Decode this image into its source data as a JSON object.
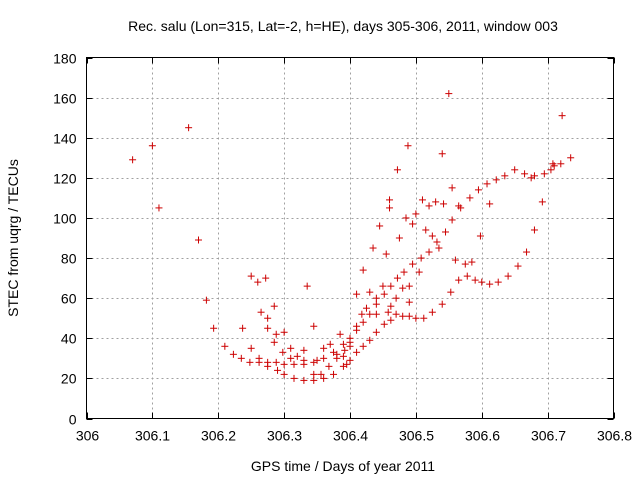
{
  "chart_data": {
    "type": "scatter",
    "title": "Rec. salu (Lon=315, Lat=-2, h=HE), days 305-306, 2011, window 003",
    "xlabel": "GPS time / Days of year 2011",
    "ylabel": "STEC from uqrg / TECUs",
    "xlim": [
      306,
      306.8
    ],
    "ylim": [
      0,
      180
    ],
    "x_ticks": [
      "306",
      "306.1",
      "306.2",
      "306.3",
      "306.4",
      "306.5",
      "306.6",
      "306.7",
      "306.8"
    ],
    "y_ticks": [
      "0",
      "20",
      "40",
      "60",
      "80",
      "100",
      "120",
      "140",
      "160",
      "180"
    ],
    "x_tick_values": [
      306,
      306.1,
      306.2,
      306.3,
      306.4,
      306.5,
      306.6,
      306.7,
      306.8
    ],
    "y_tick_values": [
      0,
      20,
      40,
      60,
      80,
      100,
      120,
      140,
      160,
      180
    ],
    "grid": true,
    "marker": "plus",
    "color": "#cc0000",
    "points": [
      [
        306.07,
        129
      ],
      [
        306.1,
        136
      ],
      [
        306.11,
        105
      ],
      [
        306.155,
        145
      ],
      [
        306.17,
        89
      ],
      [
        306.182,
        59
      ],
      [
        306.193,
        45
      ],
      [
        306.21,
        36
      ],
      [
        306.223,
        32
      ],
      [
        306.235,
        30
      ],
      [
        306.248,
        28
      ],
      [
        306.262,
        28
      ],
      [
        306.275,
        26
      ],
      [
        306.29,
        24
      ],
      [
        306.3,
        22
      ],
      [
        306.315,
        20
      ],
      [
        306.33,
        19
      ],
      [
        306.345,
        19
      ],
      [
        306.36,
        20
      ],
      [
        306.375,
        22
      ],
      [
        306.39,
        26
      ],
      [
        306.4,
        29
      ],
      [
        306.41,
        33
      ],
      [
        306.42,
        36
      ],
      [
        306.43,
        39
      ],
      [
        306.44,
        43
      ],
      [
        306.452,
        47
      ],
      [
        306.462,
        49
      ],
      [
        306.47,
        52
      ],
      [
        306.48,
        51
      ],
      [
        306.49,
        51
      ],
      [
        306.5,
        50
      ],
      [
        306.512,
        50
      ],
      [
        306.525,
        53
      ],
      [
        306.54,
        57
      ],
      [
        306.553,
        63
      ],
      [
        306.565,
        69
      ],
      [
        306.578,
        71
      ],
      [
        306.59,
        69
      ],
      [
        306.6,
        68
      ],
      [
        306.612,
        67
      ],
      [
        306.625,
        68
      ],
      [
        306.64,
        71
      ],
      [
        306.655,
        76
      ],
      [
        306.668,
        83
      ],
      [
        306.68,
        94
      ],
      [
        306.692,
        108
      ],
      [
        306.705,
        124
      ],
      [
        306.237,
        45
      ],
      [
        306.25,
        35
      ],
      [
        306.262,
        30
      ],
      [
        306.275,
        28
      ],
      [
        306.288,
        28
      ],
      [
        306.3,
        27
      ],
      [
        306.315,
        27
      ],
      [
        306.33,
        27
      ],
      [
        306.345,
        28
      ],
      [
        306.36,
        30
      ],
      [
        306.375,
        33
      ],
      [
        306.39,
        37
      ],
      [
        306.4,
        40
      ],
      [
        306.41,
        44
      ],
      [
        306.42,
        48
      ],
      [
        306.43,
        52
      ],
      [
        306.44,
        57
      ],
      [
        306.452,
        62
      ],
      [
        306.462,
        66
      ],
      [
        306.472,
        70
      ],
      [
        306.482,
        73
      ],
      [
        306.495,
        77
      ],
      [
        306.508,
        80
      ],
      [
        306.52,
        83
      ],
      [
        306.532,
        88
      ],
      [
        306.545,
        93
      ],
      [
        306.555,
        99
      ],
      [
        306.568,
        105
      ],
      [
        306.582,
        110
      ],
      [
        306.595,
        114
      ],
      [
        306.608,
        117
      ],
      [
        306.622,
        119
      ],
      [
        306.635,
        121
      ],
      [
        306.65,
        124
      ],
      [
        306.665,
        122
      ],
      [
        306.68,
        121
      ],
      [
        306.695,
        122
      ],
      [
        306.708,
        127
      ],
      [
        306.72,
        127
      ],
      [
        306.735,
        130
      ],
      [
        306.25,
        71
      ],
      [
        306.26,
        68
      ],
      [
        306.272,
        70
      ],
      [
        306.265,
        53
      ],
      [
        306.275,
        50
      ],
      [
        306.285,
        56
      ],
      [
        306.275,
        45
      ],
      [
        306.288,
        42
      ],
      [
        306.3,
        43
      ],
      [
        306.285,
        38
      ],
      [
        306.298,
        33
      ],
      [
        306.31,
        35
      ],
      [
        306.31,
        30
      ],
      [
        306.32,
        31
      ],
      [
        306.33,
        29
      ],
      [
        306.335,
        66
      ],
      [
        306.345,
        46
      ],
      [
        306.35,
        29
      ],
      [
        306.36,
        35
      ],
      [
        306.37,
        37
      ],
      [
        306.38,
        32
      ],
      [
        306.385,
        42
      ],
      [
        306.392,
        34
      ],
      [
        306.395,
        27
      ],
      [
        306.4,
        36
      ],
      [
        306.41,
        62
      ],
      [
        306.41,
        46
      ],
      [
        306.42,
        74
      ],
      [
        306.425,
        55
      ],
      [
        306.43,
        63
      ],
      [
        306.435,
        85
      ],
      [
        306.44,
        60
      ],
      [
        306.445,
        96
      ],
      [
        306.45,
        66
      ],
      [
        306.455,
        82
      ],
      [
        306.46,
        109
      ],
      [
        306.46,
        105
      ],
      [
        306.462,
        56
      ],
      [
        306.472,
        124
      ],
      [
        306.475,
        90
      ],
      [
        306.48,
        65
      ],
      [
        306.485,
        100
      ],
      [
        306.488,
        136
      ],
      [
        306.49,
        58
      ],
      [
        306.495,
        97
      ],
      [
        306.5,
        102
      ],
      [
        306.505,
        73
      ],
      [
        306.51,
        109
      ],
      [
        306.515,
        94
      ],
      [
        306.52,
        106
      ],
      [
        306.525,
        91
      ],
      [
        306.53,
        108
      ],
      [
        306.535,
        85
      ],
      [
        306.54,
        132
      ],
      [
        306.542,
        107
      ],
      [
        306.55,
        162
      ],
      [
        306.555,
        115
      ],
      [
        306.56,
        79
      ],
      [
        306.565,
        106
      ],
      [
        306.575,
        77
      ],
      [
        306.585,
        78
      ],
      [
        306.598,
        91
      ],
      [
        306.612,
        107
      ],
      [
        306.675,
        120
      ],
      [
        306.71,
        126
      ],
      [
        306.722,
        151
      ],
      [
        306.33,
        34
      ],
      [
        306.345,
        22
      ],
      [
        306.356,
        22
      ],
      [
        306.368,
        26
      ],
      [
        306.38,
        30
      ],
      [
        306.39,
        31
      ],
      [
        306.4,
        38
      ],
      [
        306.418,
        52
      ],
      [
        306.44,
        52
      ],
      [
        306.458,
        53
      ],
      [
        306.47,
        60
      ],
      [
        306.49,
        66
      ]
    ]
  }
}
